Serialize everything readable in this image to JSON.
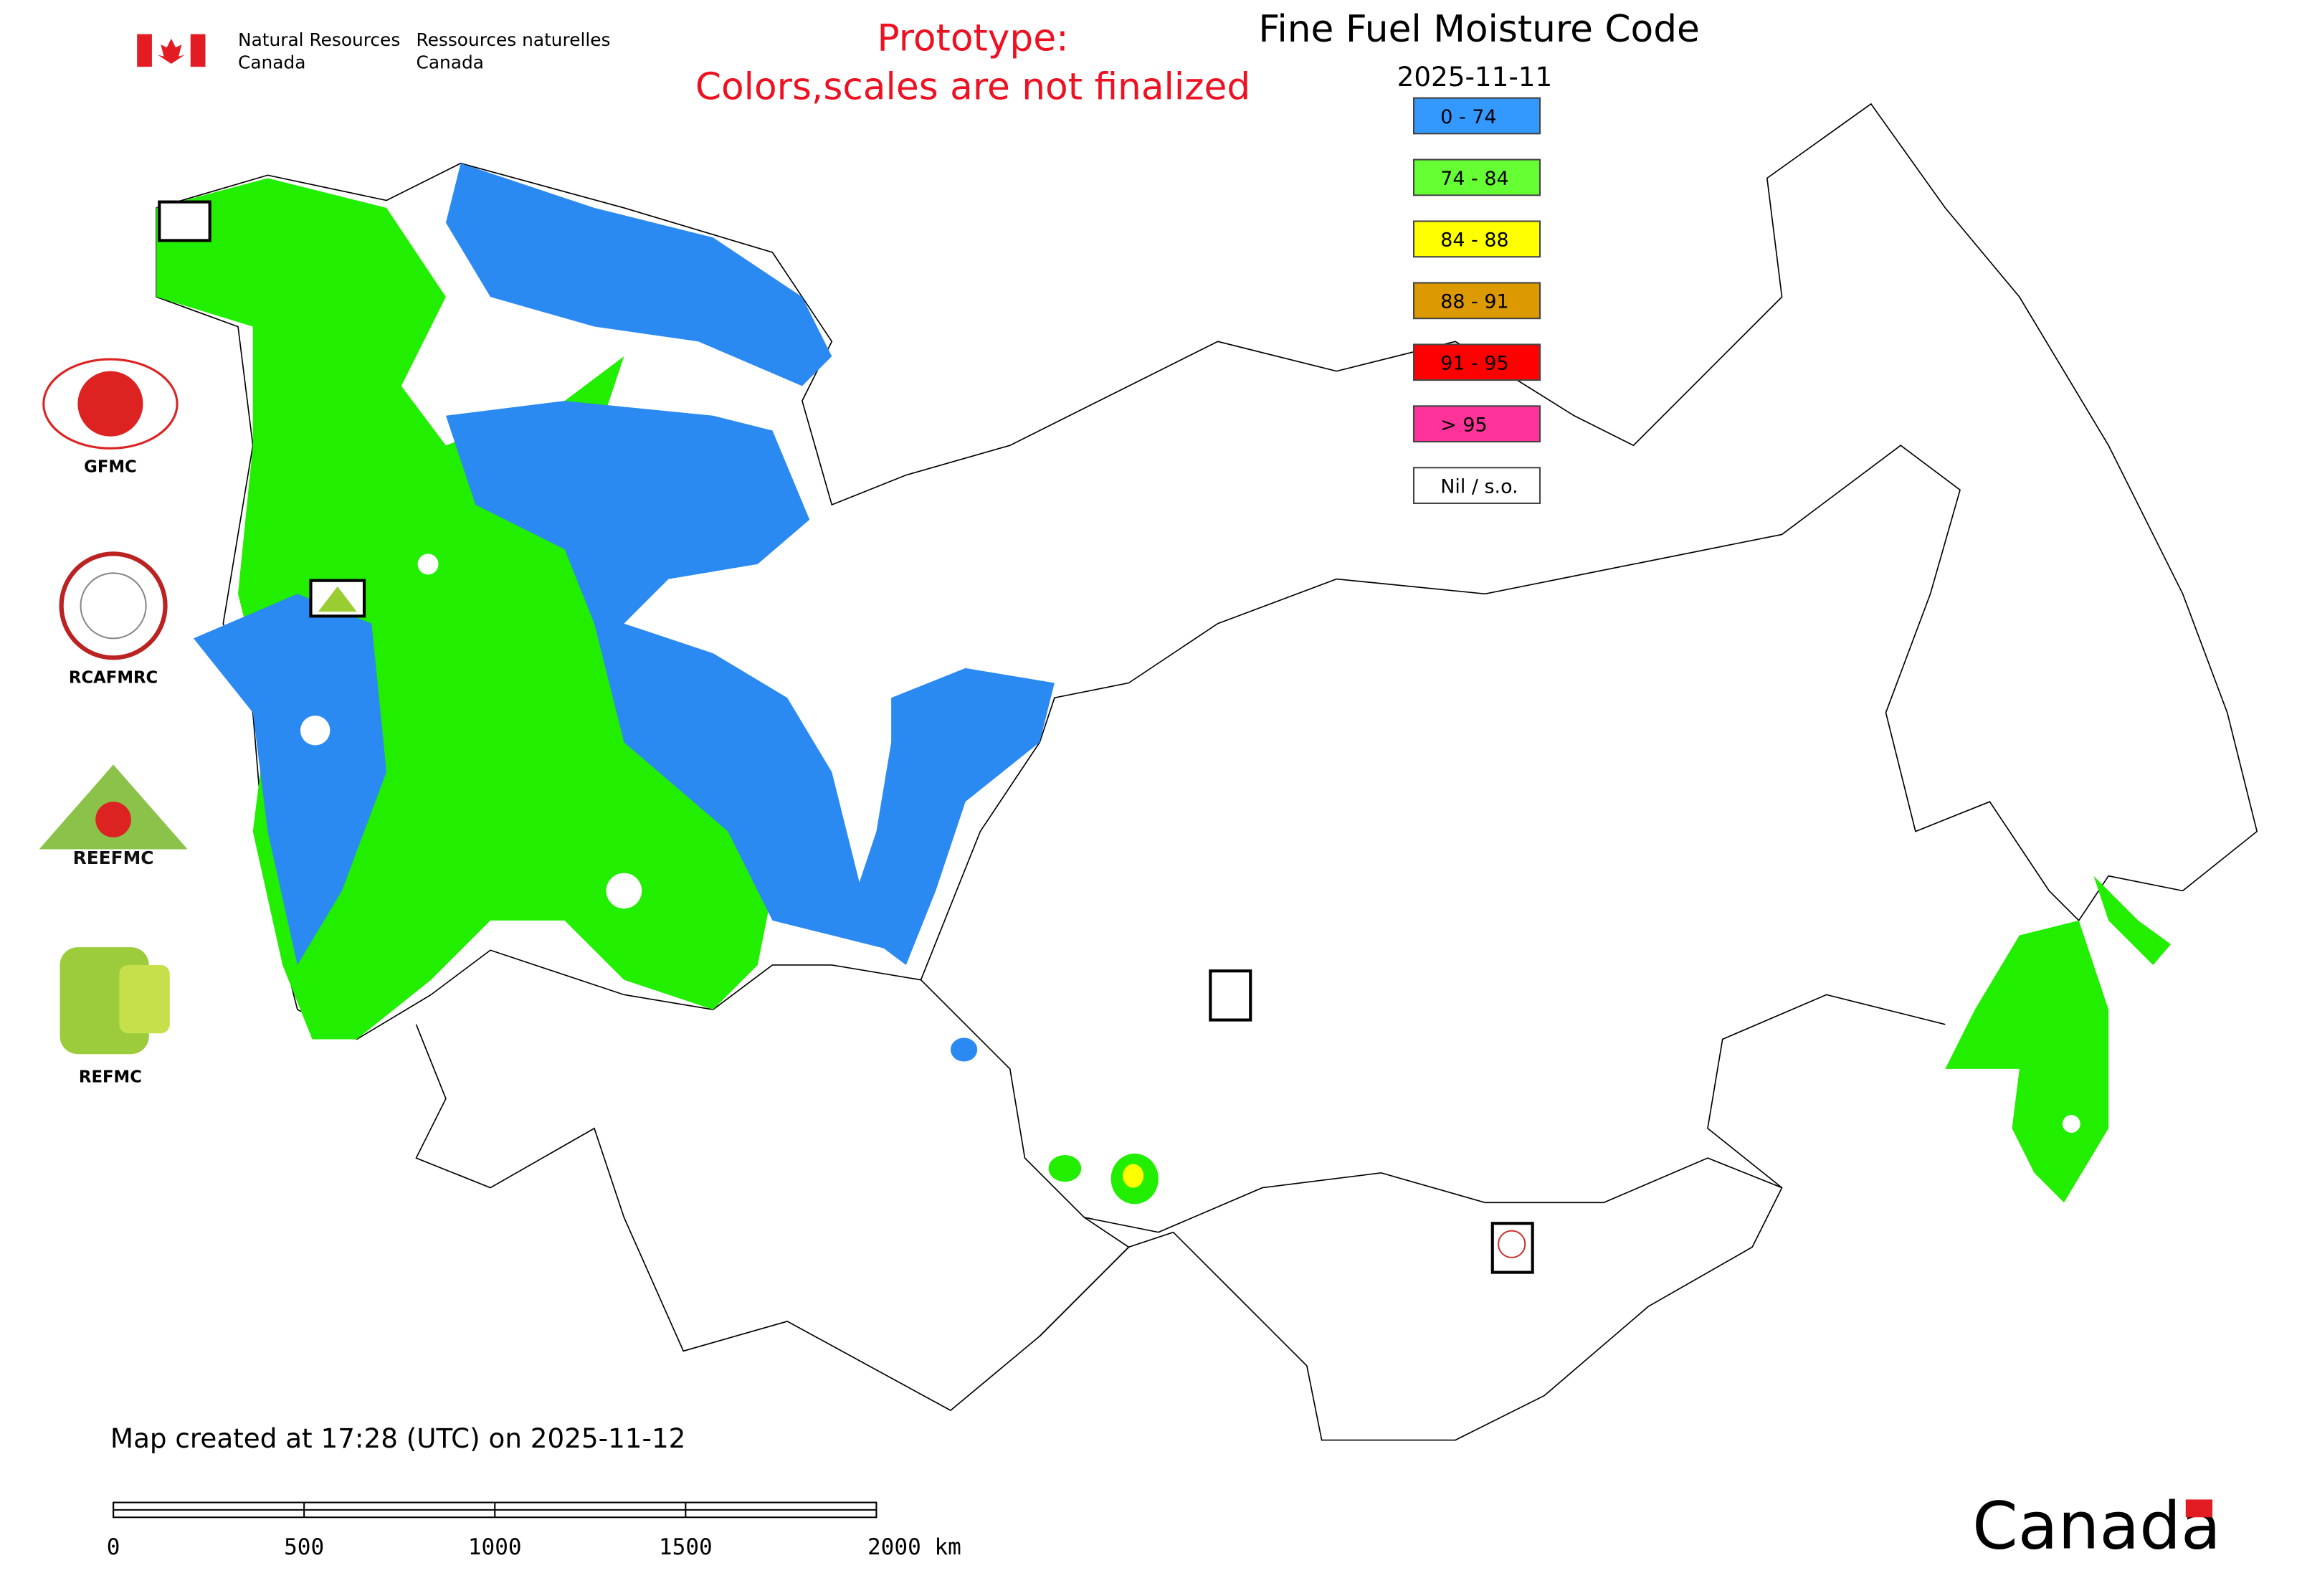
{
  "header": {
    "agency_en": [
      "Natural Resources",
      "Canada"
    ],
    "agency_fr": [
      "Ressources naturelles",
      "Canada"
    ],
    "notice": [
      "Prototype:",
      "Colors,scales are not finalized"
    ]
  },
  "map": {
    "title": "Fine Fuel Moisture Code",
    "date": "2025-11-11",
    "legend": [
      {
        "label": "0 - 74",
        "color": "#3399ff"
      },
      {
        "label": "74 - 84",
        "color": "#66ff33"
      },
      {
        "label": "84 - 88",
        "color": "#ffff00"
      },
      {
        "label": "88 - 91",
        "color": "#dd9900"
      },
      {
        "label": "91 - 95",
        "color": "#ff0000"
      },
      {
        "label": "> 95",
        "color": "#ff3399"
      },
      {
        "label": "Nil / s.o.",
        "color": "#ffffff"
      }
    ],
    "logos": [
      "GFMC",
      "RCAFMRC",
      "REEFMC",
      "REFMC"
    ],
    "created": "Map created at 17:28 (UTC) on 2025-11-12",
    "scale_labels": [
      "0",
      "500",
      "1000",
      "1500",
      "2000 km"
    ],
    "wordmark": "Canada"
  }
}
